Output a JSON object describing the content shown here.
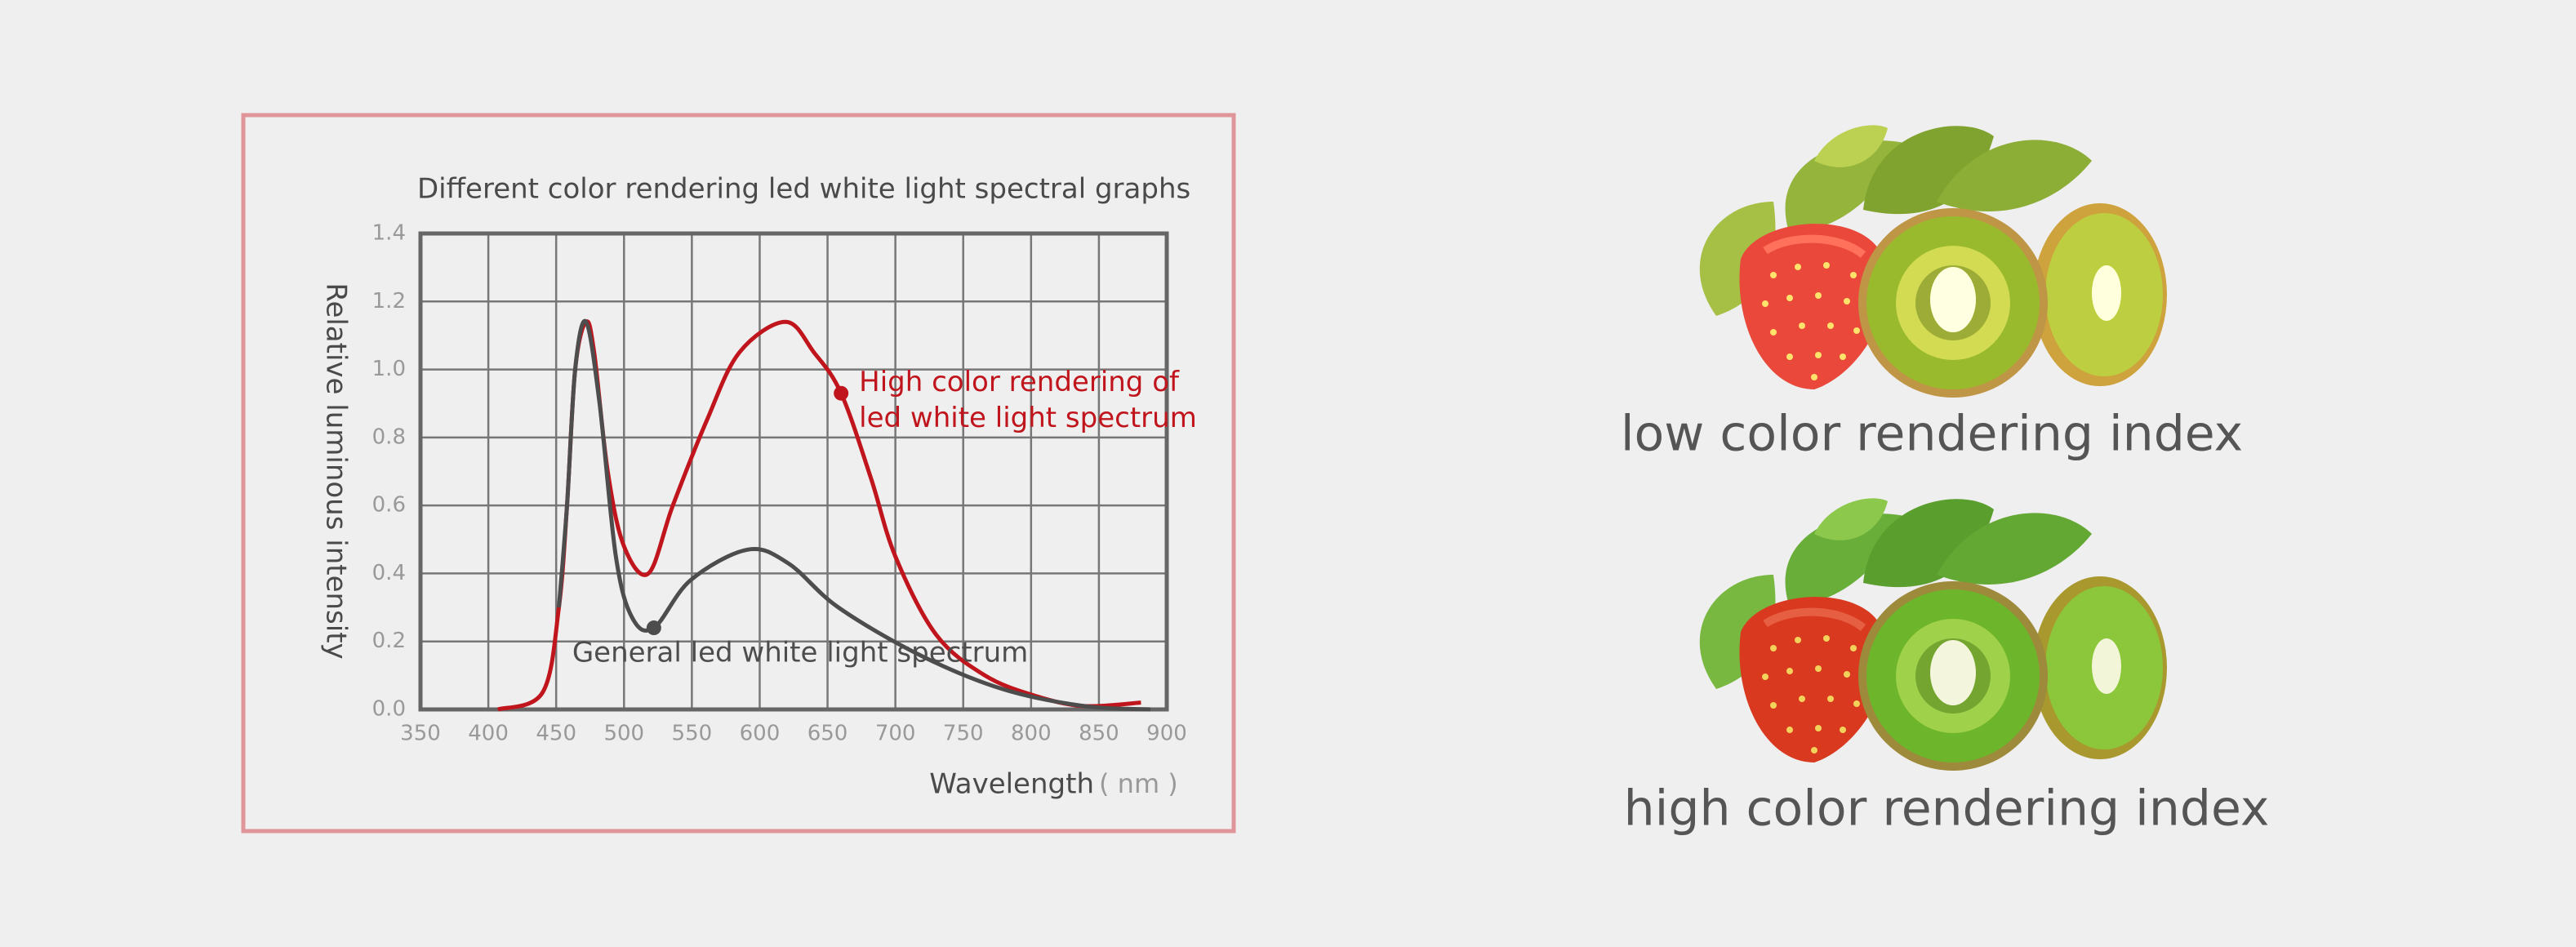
{
  "chart_data": {
    "type": "line",
    "title": "Different color rendering led white light spectral graphs",
    "ylabel": "Relative luminous intensity",
    "xlabel": "Wavelength",
    "xunit": "( nm )",
    "xlim": [
      350,
      900
    ],
    "xticks": [
      350,
      400,
      450,
      500,
      550,
      600,
      650,
      700,
      750,
      800,
      850,
      900
    ],
    "ylim": [
      0,
      1.4
    ],
    "yticks": [
      {
        "value": 0,
        "label": "0.0"
      },
      0.2,
      0.4,
      0.6,
      0.8,
      {
        "value": 1,
        "label": "1.0"
      },
      1.2,
      1.4
    ],
    "grid": true,
    "series": [
      {
        "color": "#c0151c",
        "x": [
          407,
          440,
          452,
          458,
          464,
          472,
          478,
          488,
          500,
          518,
          536,
          561,
          585,
          619,
          640,
          660,
          682,
          700,
          730,
          766,
          803,
          839,
          881
        ],
        "values": [
          0,
          0.05,
          0.3,
          0.6,
          1.0,
          1.14,
          1.05,
          0.7,
          0.48,
          0.4,
          0.6,
          0.85,
          1.05,
          1.14,
          1.05,
          0.93,
          0.68,
          0.45,
          0.22,
          0.1,
          0.04,
          0.01,
          0.02
        ]
      },
      {
        "color": "#4d4d4d",
        "x": [
          452,
          458,
          464,
          472,
          482,
          494,
          506,
          522,
          549,
          591,
          621,
          658,
          718,
          779,
          839,
          888
        ],
        "values": [
          0.3,
          0.6,
          1.0,
          1.14,
          0.9,
          0.45,
          0.27,
          0.24,
          0.38,
          0.47,
          0.43,
          0.3,
          0.16,
          0.06,
          0.01,
          0
        ]
      }
    ],
    "annotations": [
      {
        "text": [
          "High color rendering of",
          "led white light spectrum"
        ],
        "x": 660,
        "y": 0.93,
        "color": "#c0151c"
      },
      {
        "text": [
          "General led white light spectrum"
        ],
        "x": 522,
        "y": 0.24,
        "color": "#4d4d4d"
      }
    ]
  },
  "captions": [
    "low color rendering index",
    "high color rendering index"
  ]
}
